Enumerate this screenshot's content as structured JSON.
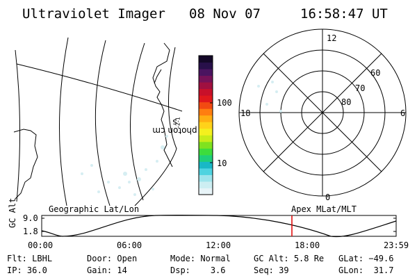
{
  "header": {
    "instrument": "Ultraviolet Imager",
    "date": "08 Nov 07",
    "time": "16:58:47 UT"
  },
  "colorbar": {
    "unit_label": "photon cm",
    "unit_exp1": "-2",
    "unit_mid": "s",
    "unit_exp2": "-1",
    "tick_high": "100",
    "tick_low": "10",
    "colors": [
      "#e8f4f8",
      "#cdeef2",
      "#9fe4ec",
      "#4fd3e0",
      "#19b8c6",
      "#1fcf7a",
      "#3ddc3d",
      "#7fe21f",
      "#c8ec19",
      "#f4f01e",
      "#ffd21a",
      "#ffae12",
      "#ff7e10",
      "#f24a12",
      "#e0181c",
      "#c8102a",
      "#a01040",
      "#761258",
      "#4a1460",
      "#28104a",
      "#140828"
    ]
  },
  "polar": {
    "mlt_top": "12",
    "mlt_bottom": "0",
    "mlt_left": "18",
    "mlt_right": "6",
    "lat_60": "60",
    "lat_70": "70",
    "lat_80": "80"
  },
  "footer_labels": {
    "geo": "Geographic Lat/Lon",
    "apex": "Apex MLat/MLT"
  },
  "altitude_panel": {
    "axis_title": "GC Alt",
    "y_high": "9.0",
    "y_low": "1.8",
    "x_ticks": [
      "00:00",
      "06:00",
      "12:00",
      "18:00",
      "23:59"
    ],
    "marker_time": "16:58"
  },
  "status": {
    "flt_label": "Flt:",
    "flt_value": "LBHL",
    "ip_label": "IP:",
    "ip_value": "36.0",
    "door_label": "Door:",
    "door_value": "Open",
    "gain_label": "Gain:",
    "gain_value": "14",
    "mode_label": "Mode:",
    "mode_value": "Normal",
    "dsp_label": "Dsp:",
    "dsp_value": "3.6",
    "gcalt_label": "GC Alt:",
    "gcalt_value": "5.8 Re",
    "seq_label": "Seq:",
    "seq_value": "39",
    "glat_label": "GLat:",
    "glat_value": "−49.6",
    "glon_label": "GLon:",
    "glon_value": "31.7"
  }
}
